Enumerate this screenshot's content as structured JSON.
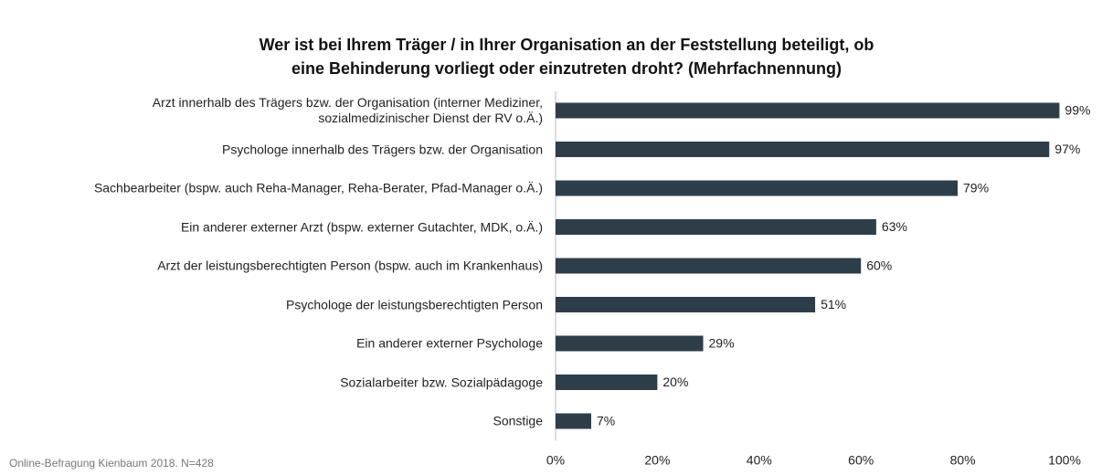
{
  "chart_data": {
    "type": "barh",
    "title": "Wer ist bei Ihrem Träger / in Ihrer Organisation an der Feststellung beteiligt, ob\neine Behinderung vorliegt oder einzutreten droht? (Mehrfachnennung)",
    "categories": [
      "Arzt innerhalb des Trägers bzw. der Organisation (interner Mediziner,\nsozialmedizinischer Dienst der RV o.Ä.)",
      "Psychologe innerhalb des Trägers bzw. der Organisation",
      "Sachbearbeiter (bspw. auch Reha-Manager, Reha-Berater, Pfad-Manager o.Ä.)",
      "Ein anderer externer Arzt (bspw. externer Gutachter, MDK, o.Ä.)",
      "Arzt der leistungsberechtigten Person (bspw. auch im Krankenhaus)",
      "Psychologe der leistungsberechtigten Person",
      "Ein anderer externer Psychologe",
      "Sozialarbeiter bzw. Sozialpädagoge",
      "Sonstige"
    ],
    "values": [
      99,
      97,
      79,
      63,
      60,
      51,
      29,
      20,
      7
    ],
    "value_labels": [
      "99%",
      "97%",
      "79%",
      "63%",
      "60%",
      "51%",
      "29%",
      "20%",
      "7%"
    ],
    "color": "#2d3e4a",
    "xlim": [
      0,
      100
    ],
    "xticks": [
      {
        "value": 0,
        "label": "0%"
      },
      {
        "value": 20,
        "label": "20%"
      },
      {
        "value": 40,
        "label": "40%"
      },
      {
        "value": 60,
        "label": "60%"
      },
      {
        "value": 80,
        "label": "80%"
      },
      {
        "value": 100,
        "label": "100%"
      }
    ],
    "source": "Online-Befragung Kienbaum 2018. N=428"
  }
}
